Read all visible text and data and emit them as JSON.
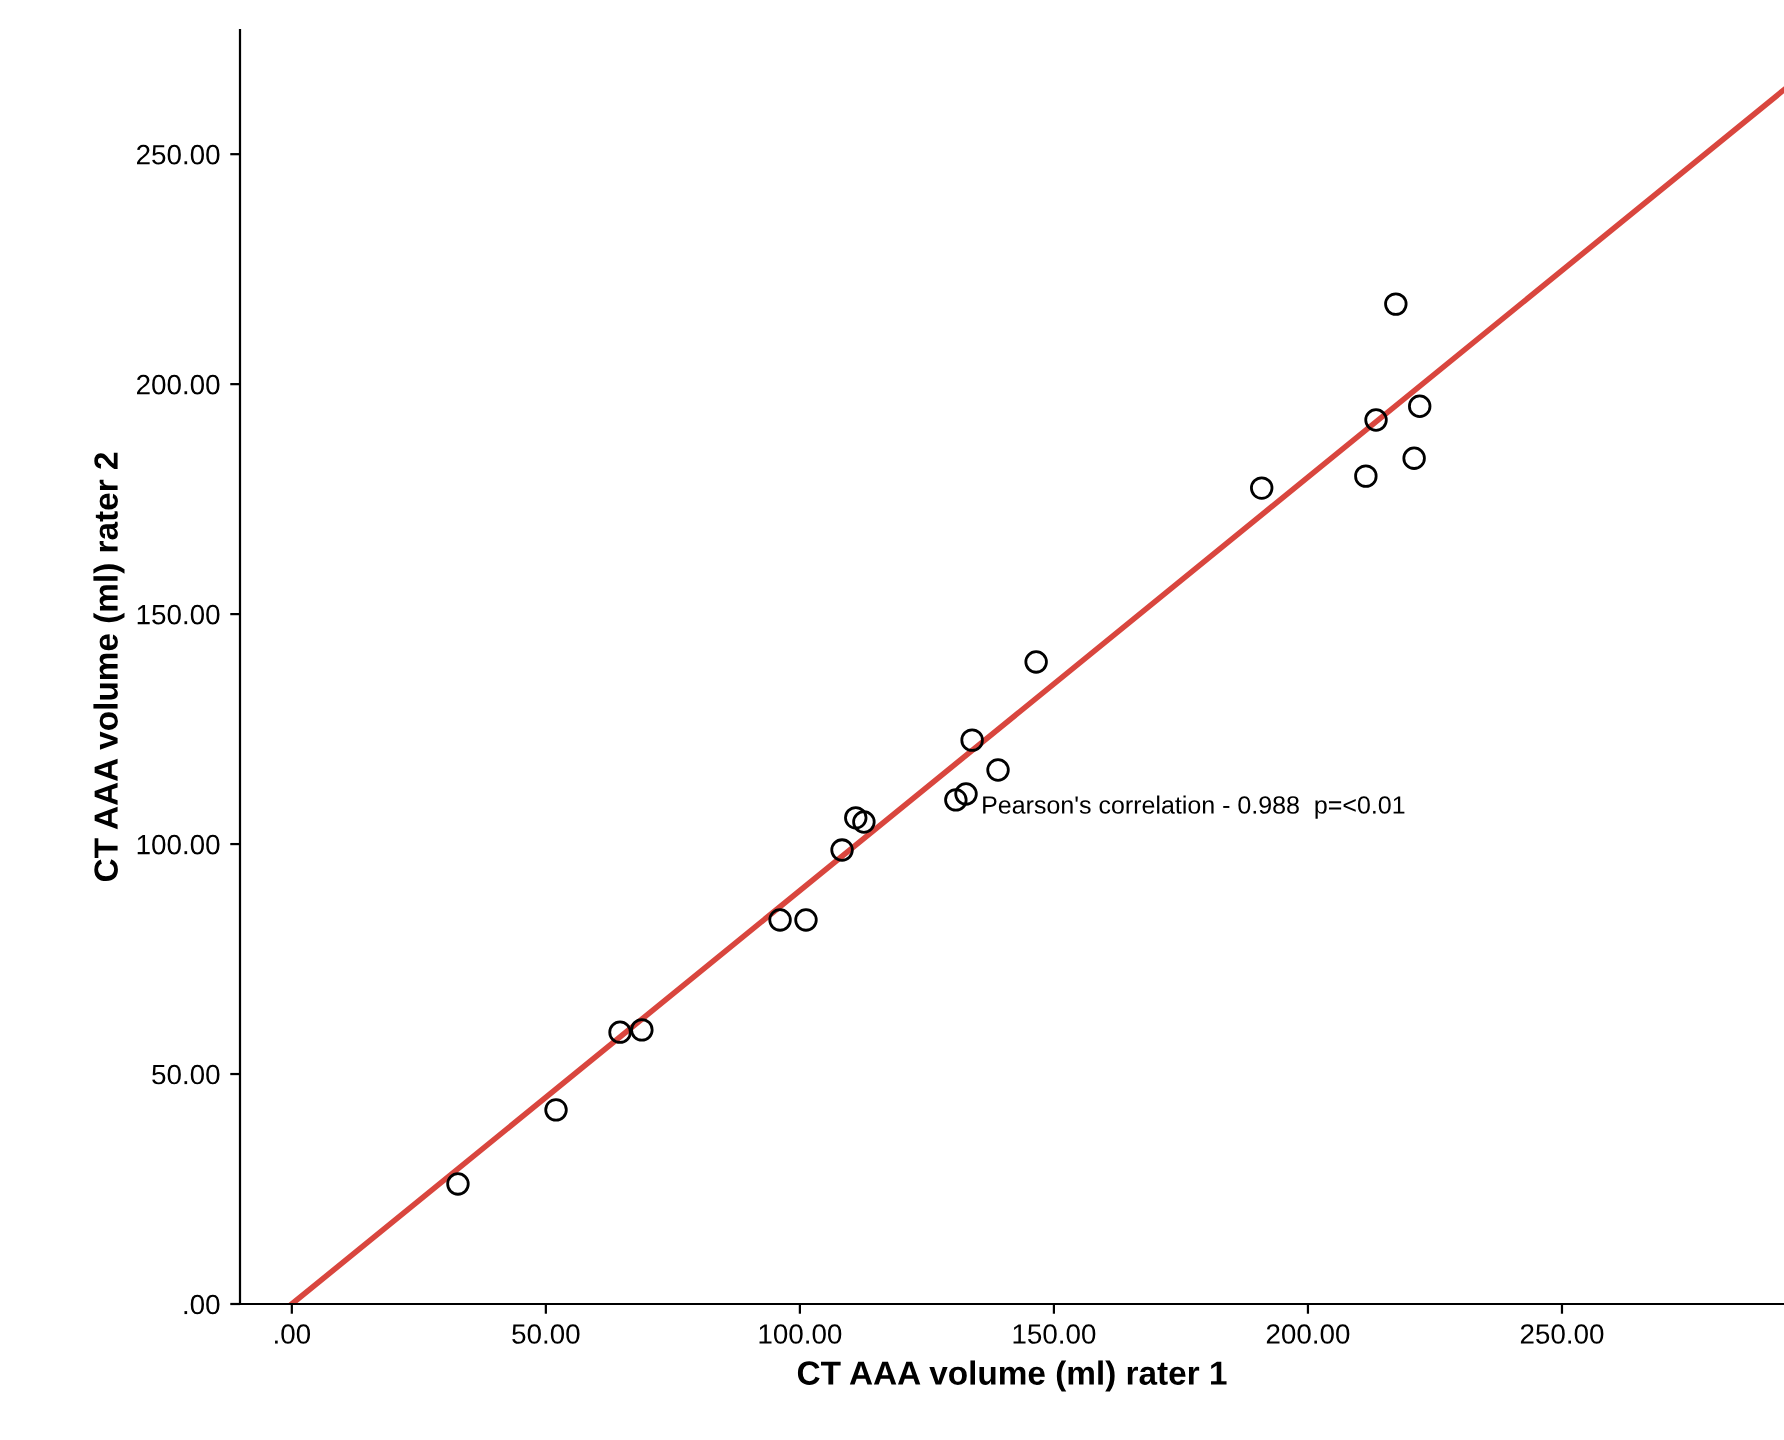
{
  "chart_data": {
    "type": "scatter",
    "xlabel": "CT AAA volume (ml) rater 1",
    "ylabel": "CT AAA volume (ml) rater 2",
    "xlim": [
      -10.2,
      293.7
    ],
    "ylim": [
      0,
      277
    ],
    "xticks": [
      {
        "value": 0,
        "label": ".00"
      },
      {
        "value": 50,
        "label": "50.00"
      },
      {
        "value": 100,
        "label": "100.00"
      },
      {
        "value": 150,
        "label": "150.00"
      },
      {
        "value": 200,
        "label": "200.00"
      },
      {
        "value": 250,
        "label": "250.00"
      }
    ],
    "yticks": [
      {
        "value": 0,
        "label": ".00"
      },
      {
        "value": 50,
        "label": "50.00"
      },
      {
        "value": 100,
        "label": "100.00"
      },
      {
        "value": 150,
        "label": "150.00"
      },
      {
        "value": 200,
        "label": "200.00"
      },
      {
        "value": 250,
        "label": "250.00"
      }
    ],
    "grid": false,
    "marker": "circle",
    "annotations": [
      "Pearson's correlation - 0.988  p=<0.01"
    ],
    "series": [
      {
        "color": "#000000",
        "x": [
          32.7,
          52.0,
          64.6,
          68.9,
          96.1,
          101.2,
          108.3,
          111.0,
          112.6,
          130.7,
          132.7,
          133.9,
          139.0,
          146.5,
          190.9,
          211.4,
          213.4,
          217.3,
          222.0,
          220.9
        ],
        "values": [
          26.1,
          42.2,
          59.1,
          59.6,
          83.5,
          83.5,
          98.7,
          105.7,
          104.8,
          109.6,
          110.9,
          122.6,
          116.1,
          139.6,
          177.4,
          180.0,
          192.2,
          217.4,
          195.2,
          183.9
        ]
      },
      {
        "type": "line",
        "color": "#d9463e",
        "marker": "none",
        "line_style": "solid",
        "x": [
          0,
          293.7
        ],
        "values": [
          0,
          264
        ]
      }
    ]
  }
}
